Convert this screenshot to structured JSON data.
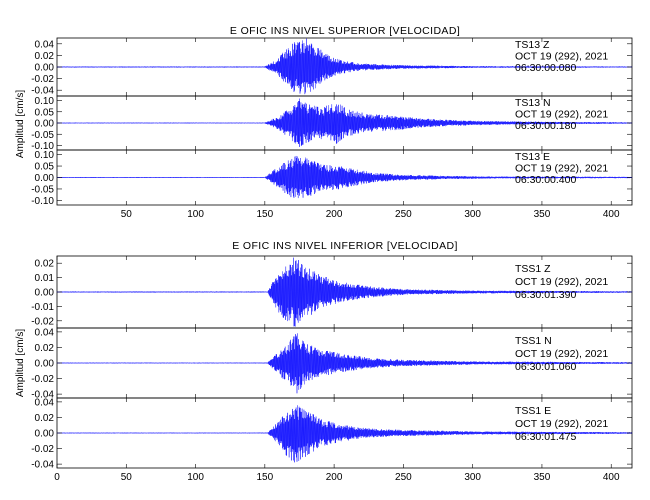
{
  "chart_data": [
    {
      "type": "line",
      "title": "E OFIC INS NIVEL SUPERIOR [VELOCIDAD]",
      "ylabel": "Amplitud [cm/s]",
      "xlim": [
        0,
        415
      ],
      "x_ticks": [
        50,
        100,
        150,
        200,
        250,
        300,
        350,
        400
      ],
      "grid": false,
      "series": [
        {
          "station": "TS13",
          "component": "Z",
          "date": "OCT 19 (292), 2021",
          "start_time": "06:30:00.080",
          "ylim": [
            -0.05,
            0.05
          ],
          "y_ticks": [
            "0.04",
            "0.02",
            "0.00",
            "-0.02",
            "-0.04"
          ],
          "y_tick_values": [
            0.04,
            0.02,
            0.0,
            -0.02,
            -0.04
          ],
          "segments": [
            {
              "x": 0,
              "amp": 0.001
            },
            {
              "x": 150,
              "amp": 0.001
            },
            {
              "x": 158,
              "amp": 0.012
            },
            {
              "x": 165,
              "amp": 0.03
            },
            {
              "x": 172,
              "amp": 0.045
            },
            {
              "x": 180,
              "amp": 0.05
            },
            {
              "x": 188,
              "amp": 0.035
            },
            {
              "x": 196,
              "amp": 0.02
            },
            {
              "x": 205,
              "amp": 0.012
            },
            {
              "x": 220,
              "amp": 0.006
            },
            {
              "x": 250,
              "amp": 0.003
            },
            {
              "x": 300,
              "amp": 0.0015
            },
            {
              "x": 415,
              "amp": 0.001
            }
          ]
        },
        {
          "station": "TS13",
          "component": "N",
          "date": "OCT 19 (292), 2021",
          "start_time": "06:30:00.180",
          "ylim": [
            -0.12,
            0.12
          ],
          "y_ticks": [
            "0.10",
            "0.05",
            "0.00",
            "-0.05",
            "-0.10"
          ],
          "y_tick_values": [
            0.1,
            0.05,
            0.0,
            -0.05,
            -0.1
          ],
          "segments": [
            {
              "x": 0,
              "amp": 0.002
            },
            {
              "x": 150,
              "amp": 0.002
            },
            {
              "x": 160,
              "amp": 0.03
            },
            {
              "x": 168,
              "amp": 0.07
            },
            {
              "x": 175,
              "amp": 0.11
            },
            {
              "x": 183,
              "amp": 0.08
            },
            {
              "x": 192,
              "amp": 0.07
            },
            {
              "x": 200,
              "amp": 0.1
            },
            {
              "x": 210,
              "amp": 0.06
            },
            {
              "x": 225,
              "amp": 0.04
            },
            {
              "x": 240,
              "amp": 0.035
            },
            {
              "x": 260,
              "amp": 0.022
            },
            {
              "x": 280,
              "amp": 0.015
            },
            {
              "x": 300,
              "amp": 0.01
            },
            {
              "x": 330,
              "amp": 0.007
            },
            {
              "x": 360,
              "amp": 0.005
            },
            {
              "x": 415,
              "amp": 0.003
            }
          ]
        },
        {
          "station": "TS13",
          "component": "E",
          "date": "OCT 19 (292), 2021",
          "start_time": "06:30:00.400",
          "ylim": [
            -0.12,
            0.12
          ],
          "y_ticks": [
            "0.10",
            "0.05",
            "0.00",
            "-0.05",
            "-0.10"
          ],
          "y_tick_values": [
            0.1,
            0.05,
            0.0,
            -0.05,
            -0.1
          ],
          "segments": [
            {
              "x": 0,
              "amp": 0.002
            },
            {
              "x": 150,
              "amp": 0.002
            },
            {
              "x": 158,
              "amp": 0.04
            },
            {
              "x": 165,
              "amp": 0.07
            },
            {
              "x": 172,
              "amp": 0.1
            },
            {
              "x": 180,
              "amp": 0.09
            },
            {
              "x": 190,
              "amp": 0.06
            },
            {
              "x": 200,
              "amp": 0.055
            },
            {
              "x": 212,
              "amp": 0.04
            },
            {
              "x": 230,
              "amp": 0.02
            },
            {
              "x": 250,
              "amp": 0.012
            },
            {
              "x": 280,
              "amp": 0.007
            },
            {
              "x": 320,
              "amp": 0.004
            },
            {
              "x": 415,
              "amp": 0.003
            }
          ]
        }
      ]
    },
    {
      "type": "line",
      "title": "E OFIC INS NIVEL INFERIOR [VELOCIDAD]",
      "ylabel": "Amplitud [cm/s]",
      "xlim": [
        0,
        415
      ],
      "x_ticks": [
        0,
        50,
        100,
        150,
        200,
        250,
        300,
        350,
        400
      ],
      "grid": false,
      "series": [
        {
          "station": "TSS1",
          "component": "Z",
          "date": "OCT 19 (292), 2021",
          "start_time": "06:30:01.390",
          "ylim": [
            -0.025,
            0.025
          ],
          "y_ticks": [
            "0.02",
            "0.01",
            "0.00",
            "-0.01",
            "-0.02"
          ],
          "y_tick_values": [
            0.02,
            0.01,
            0.0,
            -0.01,
            -0.02
          ],
          "segments": [
            {
              "x": 0,
              "amp": 0.0004
            },
            {
              "x": 152,
              "amp": 0.0004
            },
            {
              "x": 158,
              "amp": 0.012
            },
            {
              "x": 165,
              "amp": 0.02
            },
            {
              "x": 172,
              "amp": 0.025
            },
            {
              "x": 180,
              "amp": 0.018
            },
            {
              "x": 190,
              "amp": 0.012
            },
            {
              "x": 205,
              "amp": 0.007
            },
            {
              "x": 225,
              "amp": 0.004
            },
            {
              "x": 250,
              "amp": 0.002
            },
            {
              "x": 300,
              "amp": 0.001
            },
            {
              "x": 415,
              "amp": 0.0005
            }
          ]
        },
        {
          "station": "TSS1",
          "component": "N",
          "date": "OCT 19 (292), 2021",
          "start_time": "06:30:01.060",
          "ylim": [
            -0.045,
            0.045
          ],
          "y_ticks": [
            "0.04",
            "0.02",
            "0.00",
            "-0.02",
            "-0.04"
          ],
          "y_tick_values": [
            0.04,
            0.02,
            0.0,
            -0.02,
            -0.04
          ],
          "segments": [
            {
              "x": 0,
              "amp": 0.0006
            },
            {
              "x": 152,
              "amp": 0.0006
            },
            {
              "x": 158,
              "amp": 0.012
            },
            {
              "x": 166,
              "amp": 0.025
            },
            {
              "x": 173,
              "amp": 0.04
            },
            {
              "x": 180,
              "amp": 0.025
            },
            {
              "x": 190,
              "amp": 0.018
            },
            {
              "x": 205,
              "amp": 0.012
            },
            {
              "x": 225,
              "amp": 0.007
            },
            {
              "x": 250,
              "amp": 0.004
            },
            {
              "x": 300,
              "amp": 0.002
            },
            {
              "x": 415,
              "amp": 0.001
            }
          ]
        },
        {
          "station": "TSS1",
          "component": "E",
          "date": "OCT 19 (292), 2021",
          "start_time": "06:30:01.475",
          "ylim": [
            -0.045,
            0.045
          ],
          "y_ticks": [
            "0.04",
            "0.02",
            "0.00",
            "-0.02",
            "-0.04"
          ],
          "y_tick_values": [
            0.04,
            0.02,
            0.0,
            -0.02,
            -0.04
          ],
          "segments": [
            {
              "x": 0,
              "amp": 0.0006
            },
            {
              "x": 152,
              "amp": 0.0006
            },
            {
              "x": 158,
              "amp": 0.012
            },
            {
              "x": 165,
              "amp": 0.028
            },
            {
              "x": 172,
              "amp": 0.04
            },
            {
              "x": 180,
              "amp": 0.03
            },
            {
              "x": 190,
              "amp": 0.018
            },
            {
              "x": 205,
              "amp": 0.011
            },
            {
              "x": 225,
              "amp": 0.006
            },
            {
              "x": 250,
              "amp": 0.004
            },
            {
              "x": 300,
              "amp": 0.002
            },
            {
              "x": 415,
              "amp": 0.001
            }
          ]
        }
      ]
    }
  ],
  "style": {
    "trace_color": "#1a1aff",
    "axis_color": "#000000"
  }
}
